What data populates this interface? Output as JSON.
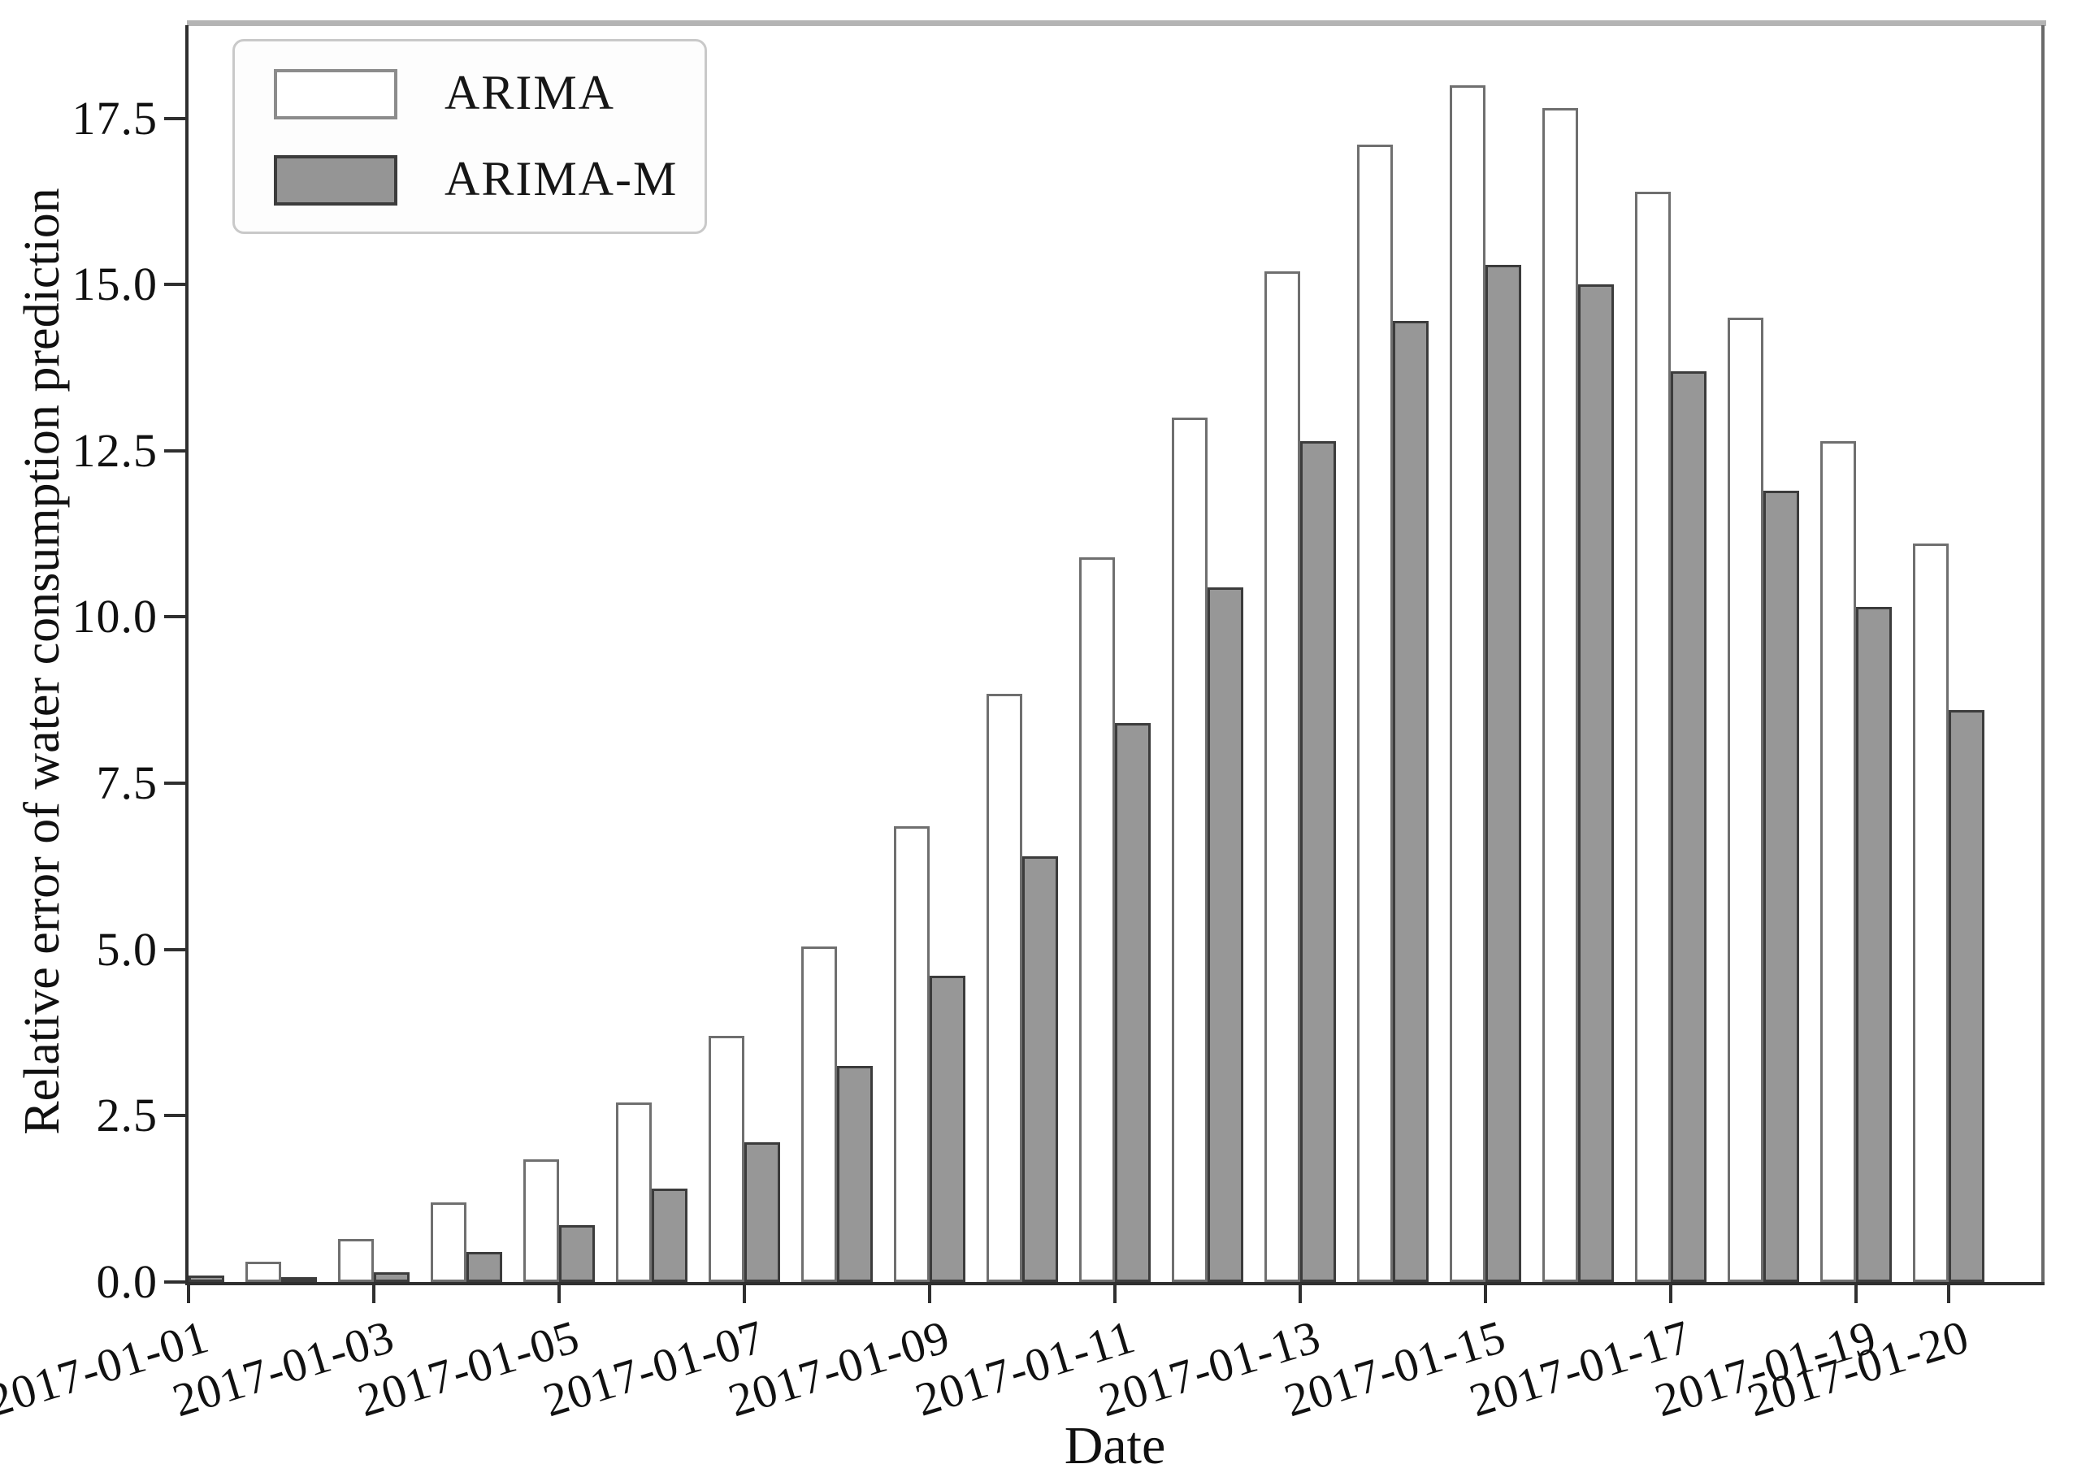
{
  "figure": {
    "y_axis_title": "Relative error of water consumption prediction",
    "x_axis_title": "Date"
  },
  "legend": {
    "position": "upper left",
    "items": [
      {
        "label": "ARIMA",
        "fill": "#ffffff",
        "edge": "#8c8c8c"
      },
      {
        "label": "ARIMA-M",
        "fill": "#959595",
        "edge": "#3c3c3c"
      }
    ]
  },
  "colors": {
    "arima_fill": "#ffffff",
    "arima_edge": "#6f6f6f",
    "arima_m_fill": "#979797",
    "arima_m_edge": "#3c3c3c",
    "axis_dark": "#2f2f2f",
    "axis_light": "#b4b4b4",
    "axis_right": "#6a6a6a",
    "text": "#111111"
  },
  "chart_data": {
    "type": "bar",
    "title": "",
    "xlabel": "Date",
    "ylabel": "Relative error of water consumption prediction",
    "categories": [
      "2017-01-01",
      "2017-01-02",
      "2017-01-03",
      "2017-01-04",
      "2017-01-05",
      "2017-01-06",
      "2017-01-07",
      "2017-01-08",
      "2017-01-09",
      "2017-01-10",
      "2017-01-11",
      "2017-01-12",
      "2017-01-13",
      "2017-01-14",
      "2017-01-15",
      "2017-01-16",
      "2017-01-17",
      "2017-01-18",
      "2017-01-19",
      "2017-01-20"
    ],
    "series": [
      {
        "name": "ARIMA",
        "values": [
          0.1,
          0.3,
          0.65,
          1.2,
          1.85,
          2.7,
          3.7,
          5.05,
          6.85,
          8.85,
          10.9,
          13.0,
          15.2,
          17.1,
          18.0,
          17.65,
          16.4,
          14.5,
          12.65,
          11.1
        ]
      },
      {
        "name": "ARIMA-M",
        "values": [
          0.1,
          0.05,
          0.15,
          0.45,
          0.85,
          1.4,
          2.1,
          3.25,
          4.6,
          6.4,
          8.4,
          10.45,
          12.65,
          14.45,
          15.3,
          15.0,
          13.7,
          11.9,
          10.15,
          8.6
        ]
      }
    ],
    "ylim": [
      0,
      18.9
    ],
    "yticks": [
      0.0,
      2.5,
      5.0,
      7.5,
      10.0,
      12.5,
      15.0,
      17.5
    ],
    "ytick_labels": [
      "0.0",
      "2.5",
      "5.0",
      "7.5",
      "10.0",
      "12.5",
      "15.0",
      "17.5"
    ],
    "xtick_labeled_indices": [
      0,
      2,
      4,
      6,
      8,
      10,
      12,
      14,
      16,
      18,
      19
    ],
    "xtick_label_rotation_deg": 17,
    "legend_position": "upper left",
    "grid": false
  }
}
